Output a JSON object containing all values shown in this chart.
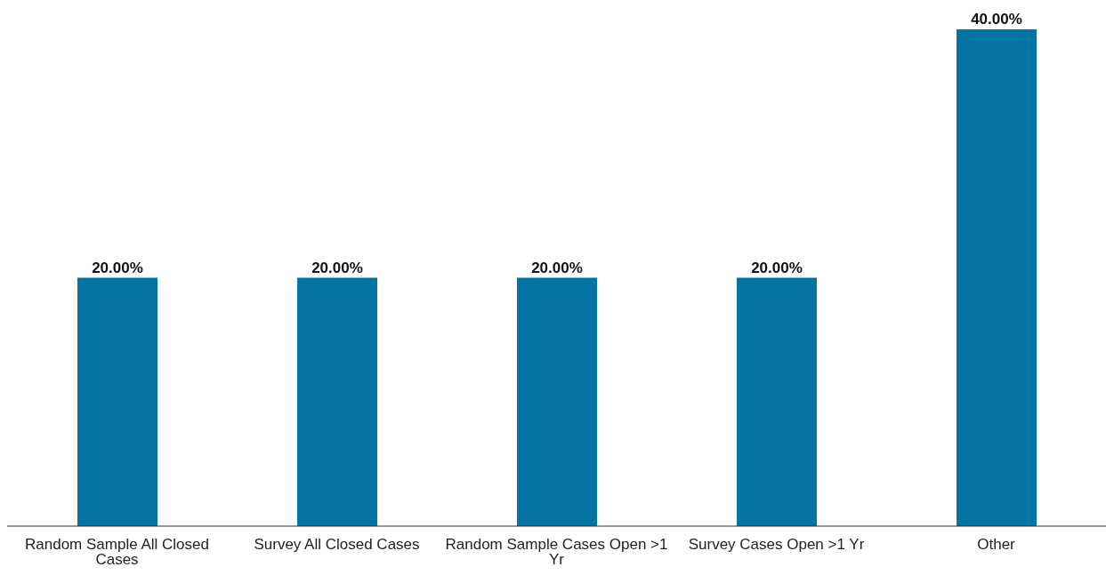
{
  "chart_data": {
    "type": "bar",
    "categories": [
      "Random Sample All Closed Cases",
      "Survey All Closed Cases",
      "Random Sample Cases Open >1 Yr",
      "Survey Cases Open >1 Yr",
      "Other"
    ],
    "values": [
      20,
      20,
      20,
      20,
      40
    ],
    "value_labels": [
      "20.00%",
      "20.00%",
      "20.00%",
      "20.00%",
      "40.00%"
    ],
    "color": "#0474a4",
    "grid": false,
    "legend": false
  }
}
